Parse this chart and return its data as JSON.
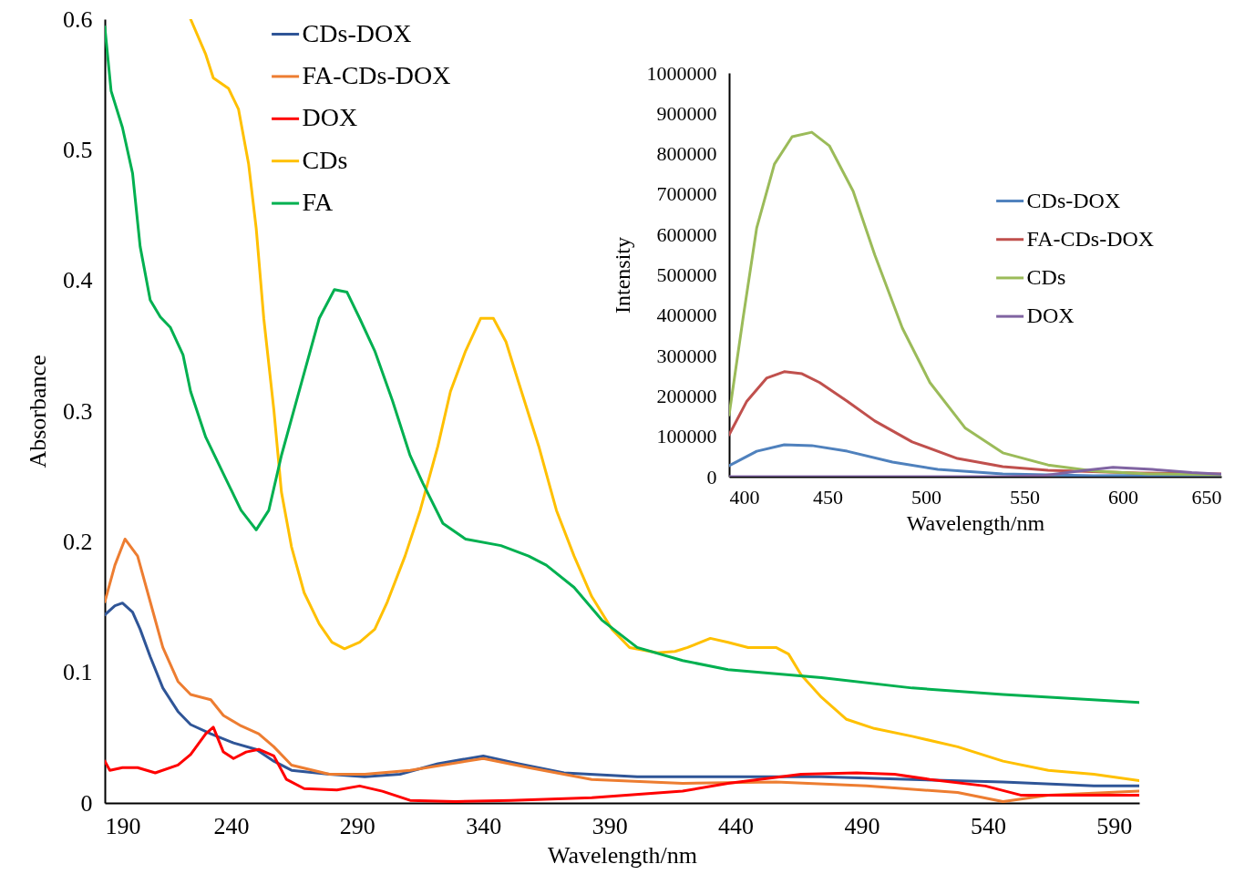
{
  "chart_data": [
    {
      "type": "line",
      "xlabel": "Wavelength/nm",
      "ylabel": "Absorbance",
      "xlim": [
        190,
        600
      ],
      "ylim": [
        0,
        0.6
      ],
      "xticks": [
        190,
        240,
        290,
        340,
        390,
        440,
        490,
        540,
        590
      ],
      "yticks": [
        0,
        0.1,
        0.2,
        0.3,
        0.4,
        0.5,
        0.6
      ],
      "grid": false,
      "legend": "top",
      "line_style": "solid",
      "marker": "none",
      "series": [
        {
          "name": "CDs-DOX",
          "color": "#2f5597",
          "x": [
            190,
            194,
            197,
            201,
            204,
            208,
            213,
            219,
            224,
            232,
            241,
            250,
            257,
            264,
            279,
            293,
            307,
            322,
            340,
            354,
            372,
            401,
            437,
            474,
            510,
            546,
            582,
            600
          ],
          "values": [
            0.144,
            0.151,
            0.153,
            0.146,
            0.133,
            0.112,
            0.088,
            0.07,
            0.06,
            0.053,
            0.046,
            0.041,
            0.032,
            0.025,
            0.022,
            0.02,
            0.022,
            0.03,
            0.036,
            0.03,
            0.023,
            0.02,
            0.02,
            0.02,
            0.018,
            0.016,
            0.013,
            0.013
          ]
        },
        {
          "name": "FA-CDs-DOX",
          "color": "#ed7d31",
          "x": [
            190,
            194,
            198,
            203,
            208,
            213,
            219,
            224,
            232,
            237,
            244,
            251,
            257,
            264,
            279,
            293,
            311,
            340,
            358,
            383,
            419,
            456,
            492,
            528,
            546,
            564,
            600
          ],
          "values": [
            0.154,
            0.182,
            0.202,
            0.189,
            0.154,
            0.119,
            0.093,
            0.083,
            0.079,
            0.067,
            0.059,
            0.053,
            0.043,
            0.029,
            0.022,
            0.022,
            0.025,
            0.034,
            0.027,
            0.018,
            0.015,
            0.016,
            0.013,
            0.008,
            0.001,
            0.006,
            0.009
          ]
        },
        {
          "name": "DOX",
          "color": "#ff0000",
          "x": [
            190,
            192,
            197,
            203,
            210,
            219,
            224,
            230,
            233,
            237,
            241,
            246,
            251,
            257,
            262,
            269,
            282,
            291,
            300,
            311,
            329,
            351,
            383,
            419,
            437,
            466,
            488,
            503,
            517,
            539,
            553,
            600
          ],
          "values": [
            0.032,
            0.025,
            0.027,
            0.027,
            0.023,
            0.029,
            0.037,
            0.053,
            0.058,
            0.039,
            0.034,
            0.039,
            0.041,
            0.036,
            0.018,
            0.011,
            0.01,
            0.013,
            0.009,
            0.002,
            0.001,
            0.002,
            0.004,
            0.009,
            0.015,
            0.022,
            0.023,
            0.022,
            0.018,
            0.013,
            0.006,
            0.006
          ]
        },
        {
          "name": "CDs",
          "color": "#ffc000",
          "x": [
            224,
            230,
            233,
            239,
            243,
            247,
            250,
            253,
            257,
            260,
            264,
            269,
            275,
            280,
            285,
            291,
            297,
            302,
            309,
            315,
            322,
            327,
            333,
            339,
            344,
            349,
            354,
            362,
            369,
            376,
            383,
            391,
            398,
            409,
            416,
            421,
            430,
            437,
            445,
            456,
            461,
            466,
            474,
            484,
            495,
            510,
            528,
            546,
            564,
            582,
            600
          ],
          "values": [
            0.6,
            0.573,
            0.555,
            0.547,
            0.531,
            0.489,
            0.44,
            0.371,
            0.301,
            0.238,
            0.196,
            0.161,
            0.137,
            0.123,
            0.118,
            0.123,
            0.133,
            0.154,
            0.189,
            0.224,
            0.273,
            0.315,
            0.346,
            0.371,
            0.371,
            0.353,
            0.322,
            0.273,
            0.224,
            0.189,
            0.158,
            0.133,
            0.119,
            0.115,
            0.116,
            0.119,
            0.126,
            0.123,
            0.119,
            0.119,
            0.114,
            0.098,
            0.081,
            0.064,
            0.057,
            0.051,
            0.043,
            0.032,
            0.025,
            0.022,
            0.017
          ]
        },
        {
          "name": "FA",
          "color": "#00b050",
          "x": [
            190,
            192.5,
            197,
            201,
            204,
            208,
            212,
            216,
            221,
            224,
            230,
            237,
            244,
            250,
            255,
            260,
            268,
            275,
            281,
            286,
            291,
            297,
            304,
            311,
            316,
            324,
            333,
            347,
            358,
            365,
            376,
            387,
            401,
            419,
            437,
            474,
            510,
            546,
            600
          ],
          "values": [
            0.594,
            0.545,
            0.517,
            0.482,
            0.426,
            0.385,
            0.372,
            0.364,
            0.343,
            0.315,
            0.28,
            0.252,
            0.224,
            0.209,
            0.224,
            0.266,
            0.322,
            0.371,
            0.393,
            0.391,
            0.371,
            0.346,
            0.308,
            0.266,
            0.245,
            0.214,
            0.202,
            0.197,
            0.189,
            0.182,
            0.165,
            0.14,
            0.119,
            0.109,
            0.102,
            0.096,
            0.088,
            0.083,
            0.077
          ]
        }
      ]
    },
    {
      "type": "line",
      "xlabel": "Wavelength/nm",
      "ylabel": "Intensity",
      "xlim": [
        400,
        650
      ],
      "ylim": [
        0,
        1000000
      ],
      "xticks": [
        400,
        450,
        500,
        550,
        600,
        650
      ],
      "yticks": [
        0,
        100000,
        200000,
        300000,
        400000,
        500000,
        600000,
        700000,
        800000,
        900000,
        1000000
      ],
      "grid": false,
      "legend": "right",
      "line_style": "solid",
      "marker": "none",
      "series": [
        {
          "name": "CDs-DOX",
          "color": "#4f81bd",
          "x": [
            400,
            414,
            428,
            442,
            460,
            483,
            506,
            539,
            585,
            650
          ],
          "values": [
            27000,
            63000,
            79000,
            77000,
            63000,
            36000,
            18000,
            7000,
            2000,
            5000
          ]
        },
        {
          "name": "FA-CDs-DOX",
          "color": "#c0504d",
          "x": [
            400,
            409,
            419,
            428,
            437,
            446,
            460,
            474,
            493,
            516,
            539,
            562,
            608,
            650
          ],
          "values": [
            104000,
            187000,
            244000,
            260000,
            255000,
            233000,
            187000,
            138000,
            86000,
            45000,
            25000,
            16000,
            9000,
            7000
          ]
        },
        {
          "name": "CDs",
          "color": "#9bbb59",
          "x": [
            400,
            407,
            414,
            423,
            432,
            442,
            451,
            463,
            474,
            488,
            502,
            520,
            539,
            562,
            585,
            613,
            650
          ],
          "values": [
            153000,
            390000,
            616000,
            774000,
            842000,
            853000,
            819000,
            707000,
            549000,
            368000,
            233000,
            120000,
            59000,
            29000,
            14000,
            7000,
            5000
          ]
        },
        {
          "name": "DOX",
          "color": "#8064a2",
          "x": [
            400,
            540,
            560,
            580,
            595,
            615,
            635,
            650
          ],
          "values": [
            0,
            0,
            3000,
            15000,
            23000,
            18000,
            10000,
            6000
          ]
        }
      ]
    }
  ]
}
